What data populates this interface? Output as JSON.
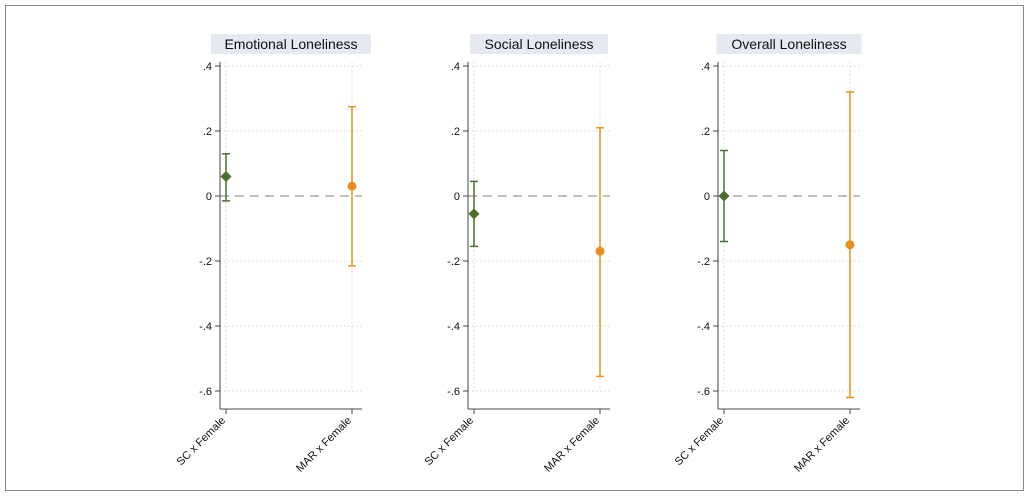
{
  "chart_data": [
    {
      "type": "scatter",
      "title": "Emotional Loneliness",
      "categories": [
        "SC x Female",
        "MAR x Female"
      ],
      "ylim": [
        -0.6,
        0.4
      ],
      "yticks": [
        0.4,
        0.2,
        0,
        -0.2,
        -0.4,
        -0.6
      ],
      "ytick_labels": [
        ".4",
        ".2",
        "0",
        "-.2",
        "-.4",
        "-.6"
      ],
      "reference_line": 0,
      "grid": true,
      "points": [
        {
          "category": "SC x Female",
          "estimate": 0.06,
          "ci_low": -0.015,
          "ci_high": 0.13,
          "marker": "diamond",
          "color": "#4a6f2e"
        },
        {
          "category": "MAR x Female",
          "estimate": 0.03,
          "ci_low": -0.215,
          "ci_high": 0.275,
          "marker": "circle",
          "color": "#e8901e"
        }
      ]
    },
    {
      "type": "scatter",
      "title": "Social Loneliness",
      "categories": [
        "SC x Female",
        "MAR x Female"
      ],
      "ylim": [
        -0.6,
        0.4
      ],
      "yticks": [
        0.4,
        0.2,
        0,
        -0.2,
        -0.4,
        -0.6
      ],
      "ytick_labels": [
        ".4",
        ".2",
        "0",
        "-.2",
        "-.4",
        "-.6"
      ],
      "reference_line": 0,
      "grid": true,
      "points": [
        {
          "category": "SC x Female",
          "estimate": -0.055,
          "ci_low": -0.155,
          "ci_high": 0.045,
          "marker": "diamond",
          "color": "#4a6f2e"
        },
        {
          "category": "MAR x Female",
          "estimate": -0.17,
          "ci_low": -0.555,
          "ci_high": 0.21,
          "marker": "circle",
          "color": "#e8901e"
        }
      ]
    },
    {
      "type": "scatter",
      "title": "Overall Loneliness",
      "categories": [
        "SC x Female",
        "MAR x Female"
      ],
      "ylim": [
        -0.6,
        0.4
      ],
      "yticks": [
        0.4,
        0.2,
        0,
        -0.2,
        -0.4,
        -0.6
      ],
      "ytick_labels": [
        ".4",
        ".2",
        "0",
        "-.2",
        "-.4",
        "-.6"
      ],
      "reference_line": 0,
      "grid": true,
      "points": [
        {
          "category": "SC x Female",
          "estimate": 0.0,
          "ci_low": -0.14,
          "ci_high": 0.14,
          "marker": "diamond",
          "color": "#4a6f2e"
        },
        {
          "category": "MAR x Female",
          "estimate": -0.15,
          "ci_low": -0.62,
          "ci_high": 0.32,
          "marker": "circle",
          "color": "#e8901e"
        }
      ]
    }
  ],
  "colors": {
    "title_background": "#e6e8f2",
    "grid": "#d4d4d4",
    "reference_line": "#9a9a9a",
    "axis": "#444444"
  }
}
